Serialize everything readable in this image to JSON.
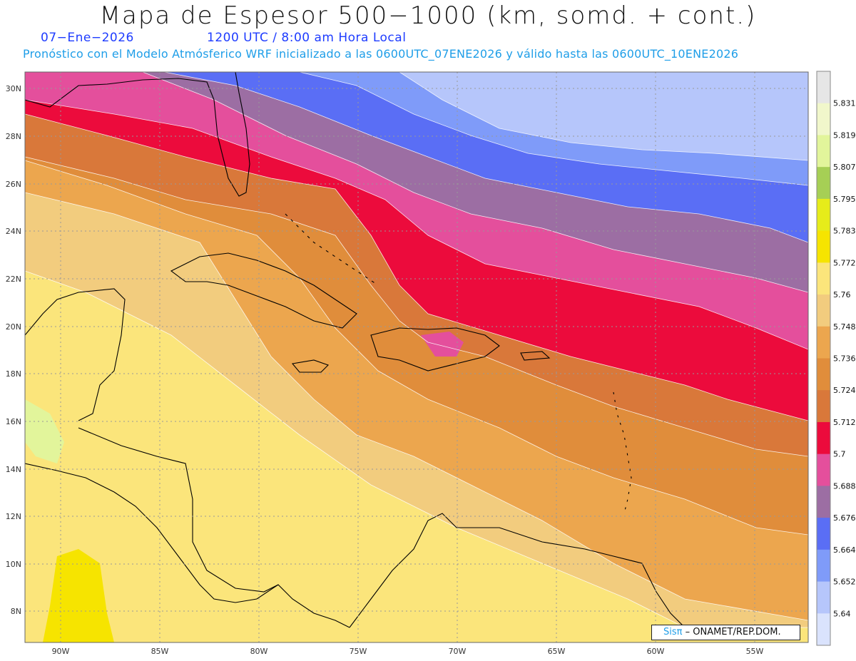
{
  "header": {
    "title": "Mapa de Espesor 500−1000 (km, somd. + cont.)",
    "date": "07−Ene−2026",
    "valid_time": "1200 UTC / 8:00 am Hora Local",
    "forecast_desc": "Pronóstico con el Modelo Atmósferico WRF inicializado a las 0600UTC_07ENE2026 y válido hasta las  0600UTC_10ENE2026"
  },
  "map": {
    "lat_ticks": [
      "30N",
      "28N",
      "26N",
      "24N",
      "22N",
      "20N",
      "18N",
      "16N",
      "14N",
      "12N",
      "10N",
      "8N"
    ],
    "lon_ticks": [
      "90W",
      "85W",
      "80W",
      "75W",
      "70W",
      "65W",
      "60W",
      "55W"
    ],
    "grid": true
  },
  "colorbar": {
    "levels": [
      "5.831",
      "5.819",
      "5.807",
      "5.795",
      "5.783",
      "5.772",
      "5.76",
      "5.748",
      "5.736",
      "5.724",
      "5.712",
      "5.7",
      "5.688",
      "5.676",
      "5.664",
      "5.652",
      "5.64"
    ],
    "colors": [
      "#e6e6e6",
      "#f1f7cb",
      "#e2f59b",
      "#a6cf55",
      "#e6ec1a",
      "#f6e400",
      "#fbe57b",
      "#f2cc7e",
      "#eca64e",
      "#e08d3b",
      "#d9783a",
      "#ec0b3c",
      "#e44f9c",
      "#9c6ea3",
      "#5a6ef5",
      "#7f9bf9",
      "#b6c6fb",
      "#dae3fd"
    ]
  },
  "credit": {
    "logo": "Sisπ",
    "text": "– ONAMET/REP.DOM."
  }
}
